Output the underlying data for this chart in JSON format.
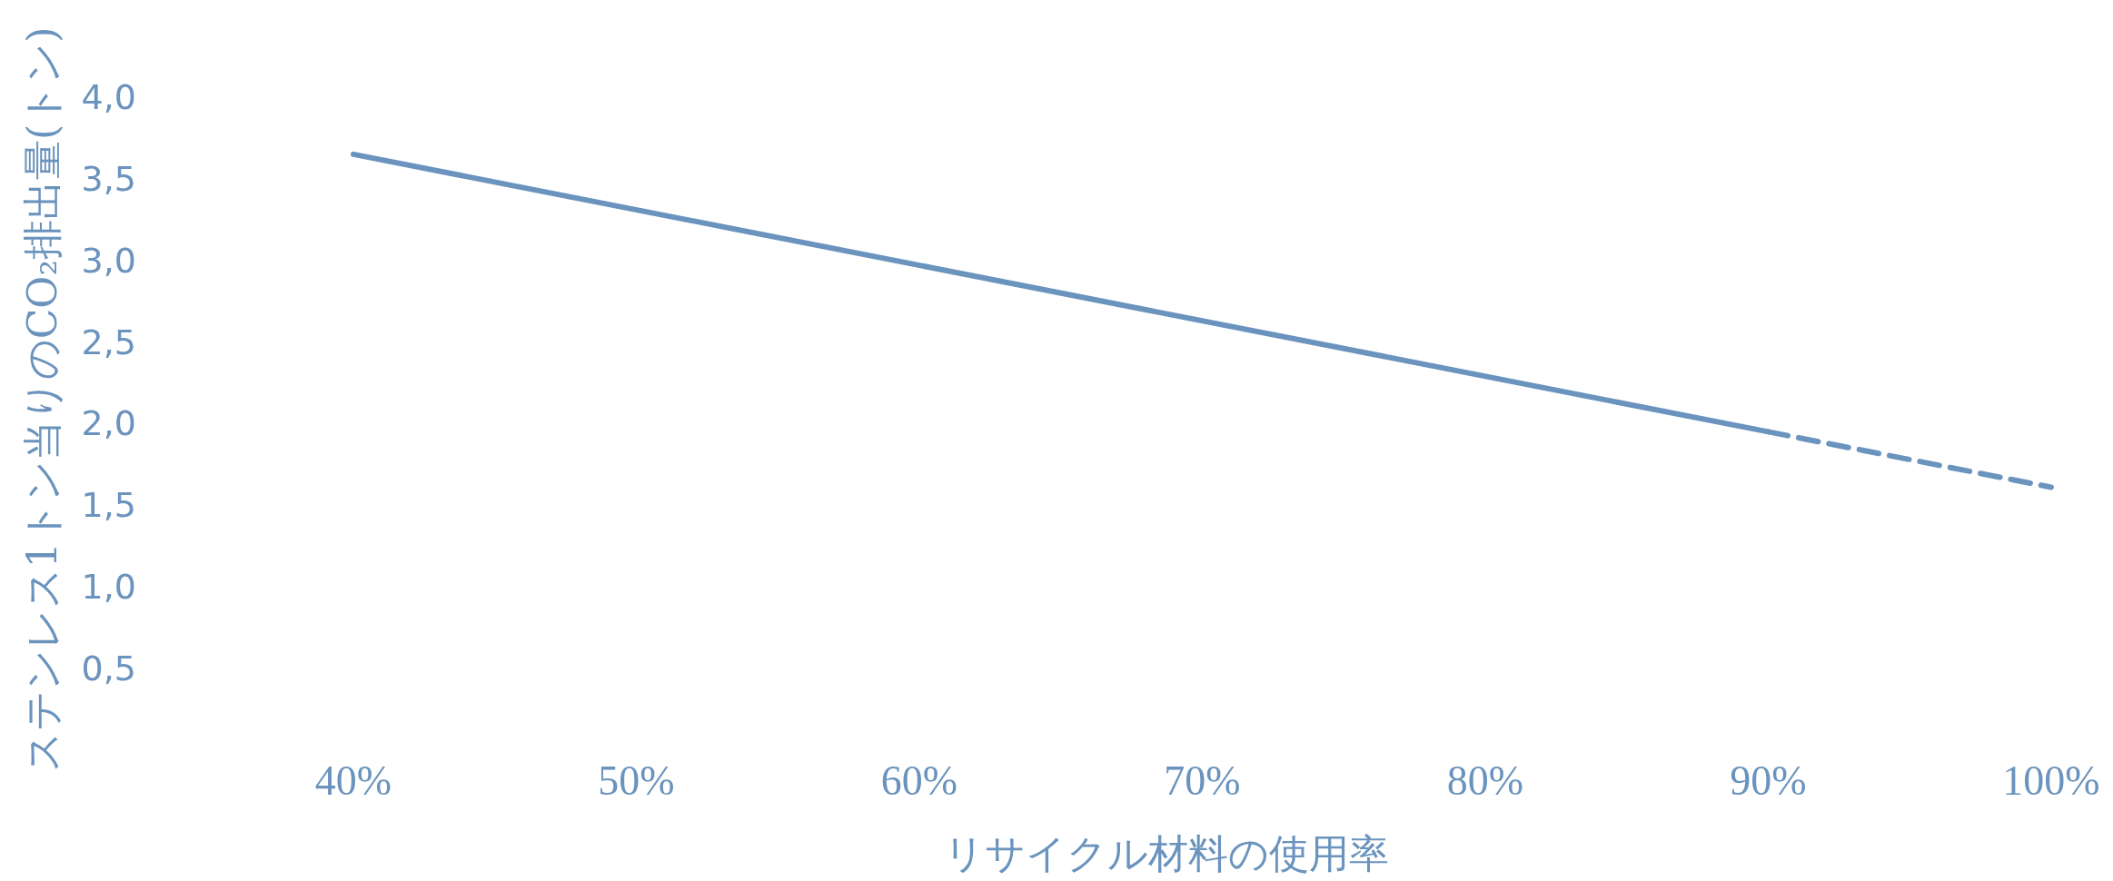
{
  "chart_data": {
    "type": "line",
    "xlabel": "リサイクル材料の使用率",
    "ylabel": "ステンレス1トン当りのCO₂排出量(トン)",
    "xlim": [
      40,
      100
    ],
    "ylim": [
      0.5,
      4
    ],
    "xticks": [
      {
        "value": 40,
        "label": "40%"
      },
      {
        "value": 50,
        "label": "50%"
      },
      {
        "value": 60,
        "label": "60%"
      },
      {
        "value": 70,
        "label": "70%"
      },
      {
        "value": 80,
        "label": "80%"
      },
      {
        "value": 90,
        "label": "90%"
      },
      {
        "value": 100,
        "label": "100%"
      }
    ],
    "yticks": [
      {
        "value": 0.5,
        "label": "0,5"
      },
      {
        "value": 1,
        "label": "1,0"
      },
      {
        "value": 1.5,
        "label": "1,5"
      },
      {
        "value": 2,
        "label": "2,0"
      },
      {
        "value": 2.5,
        "label": "2,5"
      },
      {
        "value": 3,
        "label": "3,0"
      },
      {
        "value": 3.5,
        "label": "3,5"
      },
      {
        "value": 4,
        "label": "4,0"
      }
    ],
    "grid": false,
    "series": [
      {
        "color": "#6a93bd",
        "line_style": "solid",
        "x": [
          40,
          90
        ],
        "values": [
          3.65,
          1.95
        ]
      },
      {
        "color": "#6a93bd",
        "line_style": "dashed",
        "x": [
          90,
          100
        ],
        "values": [
          1.95,
          1.61
        ]
      }
    ]
  }
}
